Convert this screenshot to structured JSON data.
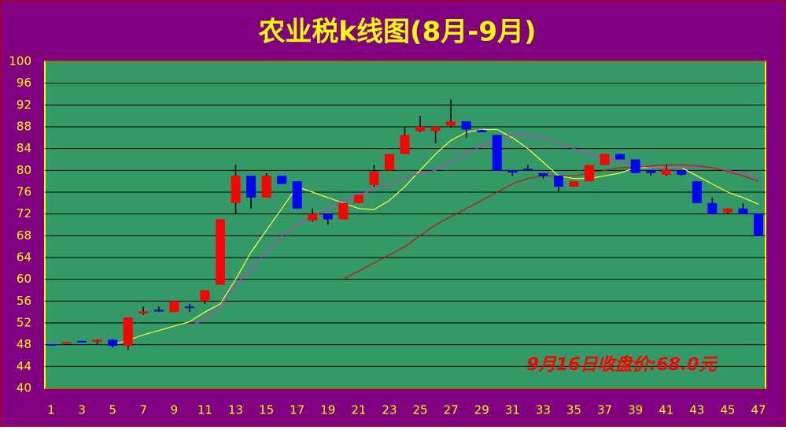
{
  "chart_data": {
    "type": "candlestick",
    "title": "农业税k线图(8月-9月)",
    "annotation": "9月16日收盘价:68.0元",
    "categories": [
      1,
      null,
      3,
      null,
      5,
      null,
      7,
      null,
      9,
      null,
      11,
      null,
      13,
      null,
      15,
      null,
      17,
      null,
      19,
      null,
      21,
      null,
      23,
      null,
      25,
      null,
      27,
      null,
      29,
      null,
      31,
      null,
      33,
      null,
      35,
      null,
      37,
      null,
      39,
      null,
      41,
      null,
      43,
      null,
      45,
      null,
      47
    ],
    "open": [
      48.1,
      48.2,
      48.7,
      48.5,
      48.9,
      47.8,
      53.7,
      54.4,
      54,
      55,
      56,
      59,
      74,
      79,
      75,
      79,
      78,
      70.8,
      72,
      71,
      74,
      77.3,
      80,
      83,
      87.2,
      87.2,
      88.2,
      89,
      87.4,
      86.5,
      80,
      80.3,
      79.5,
      79,
      77,
      78,
      81,
      83,
      82,
      80,
      79.2,
      80,
      78,
      74,
      72.3,
      73,
      72
    ],
    "high": [
      48.1,
      48.5,
      48.7,
      49,
      49,
      53,
      55,
      55,
      56,
      55.5,
      58,
      71,
      81,
      79,
      79.5,
      79,
      78,
      73,
      72,
      74,
      75.5,
      81,
      83,
      88,
      90,
      88,
      93,
      89,
      87.5,
      86.5,
      80,
      81,
      79.5,
      79,
      78,
      81,
      83,
      83,
      82,
      80,
      81,
      80,
      78,
      75,
      73,
      74,
      72
    ],
    "low": [
      48,
      48.2,
      48.5,
      48,
      47.5,
      47,
      53.5,
      54,
      54,
      54,
      55.5,
      59,
      72,
      73,
      75,
      77.5,
      73,
      70.5,
      70,
      71,
      74,
      77,
      80,
      83,
      87,
      85,
      88,
      86,
      87,
      80,
      79,
      80,
      78.5,
      76,
      77,
      78,
      81,
      82,
      79.5,
      79,
      79,
      79,
      74,
      72,
      72,
      72,
      68
    ],
    "close": [
      48,
      48.5,
      48.5,
      48.9,
      47.8,
      53,
      54.1,
      54.1,
      56,
      54.8,
      58,
      71,
      79,
      75,
      79,
      77.5,
      73,
      72,
      71,
      74,
      75.5,
      79.8,
      83,
      86.5,
      88,
      88,
      89,
      87.5,
      87,
      80,
      79.6,
      80.2,
      79,
      77,
      78,
      81,
      83,
      82,
      79.5,
      79.5,
      80.2,
      79.2,
      74,
      72,
      73,
      72,
      68
    ],
    "up_color": "#ff0000",
    "down_color": "#0000ff",
    "ylim": [
      40,
      100
    ],
    "yticks": [
      40,
      44,
      48,
      52,
      56,
      60,
      64,
      68,
      72,
      76,
      80,
      84,
      88,
      92,
      96,
      100
    ],
    "grid": true,
    "series": [
      {
        "color": "#ffff33",
        "values": [
          null,
          null,
          null,
          null,
          48,
          48.8,
          49.8,
          50.6,
          51.4,
          52.2,
          54,
          55.5,
          60,
          65,
          69,
          73,
          77,
          76,
          75,
          74,
          73,
          72.8,
          74.5,
          77,
          80,
          83,
          85.5,
          87,
          87.5,
          87.5,
          86,
          84,
          81.5,
          79,
          78.5,
          78.5,
          79,
          79.5,
          80.5,
          80.5,
          80.5,
          80.5,
          79,
          77.5,
          76,
          75,
          73.8
        ]
      },
      {
        "color": "#cc33cc",
        "values": [
          null,
          null,
          null,
          null,
          null,
          null,
          null,
          null,
          null,
          51.5,
          52.5,
          55,
          59,
          62,
          65,
          68,
          70,
          71.5,
          73,
          74.5,
          75.5,
          76.5,
          77.5,
          78.5,
          79.5,
          80,
          81.5,
          83,
          84.5,
          86,
          86.5,
          86.5,
          86,
          85,
          84,
          83,
          82.3,
          81.7,
          81,
          80.5,
          80.5,
          80.5,
          80.5,
          80.5,
          80,
          79.5,
          78.5
        ]
      },
      {
        "color": "#cc1111",
        "values": [
          null,
          null,
          null,
          null,
          null,
          null,
          null,
          null,
          null,
          null,
          null,
          null,
          null,
          null,
          null,
          null,
          null,
          null,
          null,
          60,
          61.5,
          63,
          64.5,
          66,
          68,
          70,
          71.5,
          73,
          74.5,
          76,
          77.5,
          78.5,
          79,
          79,
          79,
          79.5,
          80,
          80.5,
          80.5,
          80.8,
          81,
          81,
          80.8,
          80.5,
          79.8,
          79,
          78
        ]
      }
    ]
  }
}
